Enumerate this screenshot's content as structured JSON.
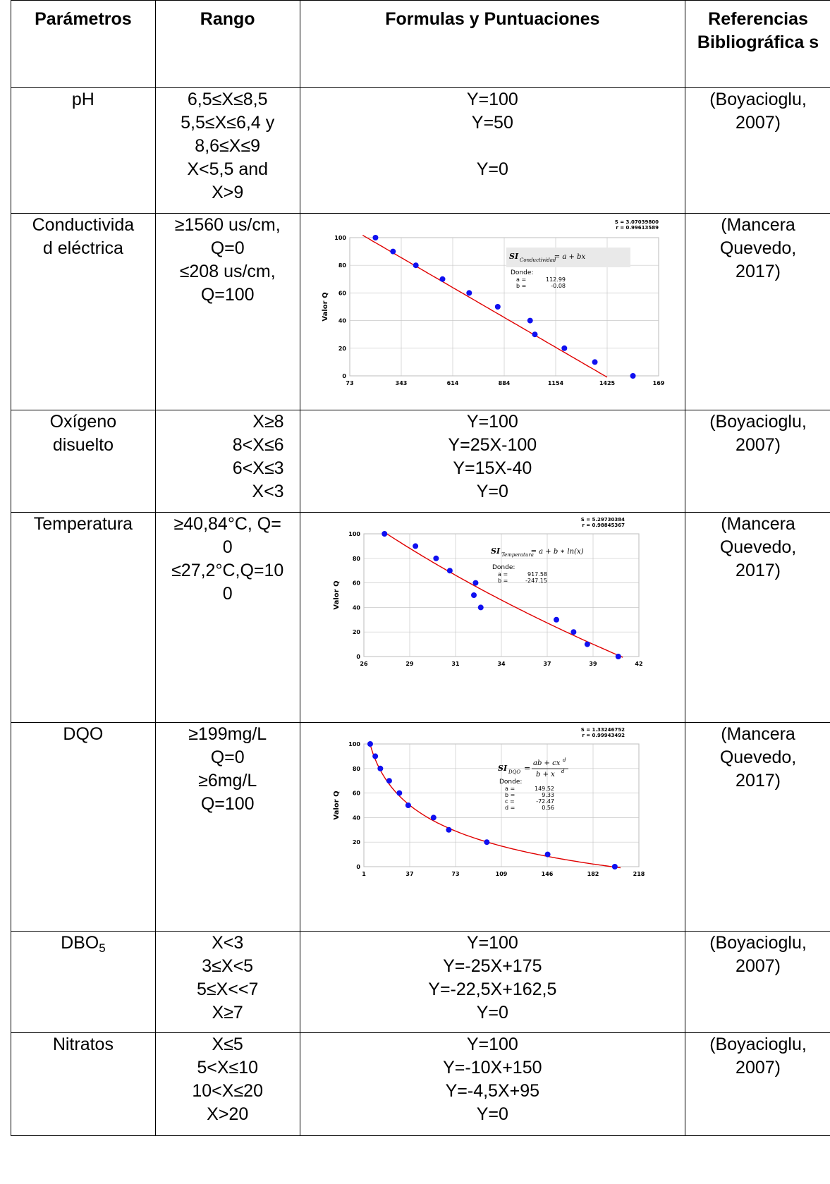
{
  "headers": {
    "parametros": "Parámetros",
    "rango": "Rango",
    "formulas": "Formulas y Puntuaciones",
    "referencias": "Referencias Bibliográfica s"
  },
  "rows": {
    "ph": {
      "param": "pH",
      "rango": [
        "6,5≤X≤8,5",
        "5,5≤X≤6,4 y",
        "8,6≤X≤9",
        "X<5,5 and",
        "X>9"
      ],
      "formulas": [
        "Y=100",
        "Y=50",
        "Y=0"
      ],
      "ref": [
        "(Boyacioglu,",
        "2007)"
      ]
    },
    "conductividad": {
      "param": [
        "Conductivida",
        "d eléctrica"
      ],
      "rango": [
        "≥1560 us/cm,",
        "Q=0",
        "≤208 us/cm,",
        "Q=100"
      ],
      "ref": [
        "(Mancera",
        "Quevedo,",
        "2017)"
      ]
    },
    "oxigeno": {
      "param": [
        "Oxígeno",
        "disuelto"
      ],
      "rango": [
        "X≥8",
        "8<X≤6",
        "6<X≤3",
        "X<3"
      ],
      "formulas": [
        "Y=100",
        "Y=25X-100",
        "Y=15X-40",
        "Y=0"
      ],
      "ref": [
        "(Boyacioglu,",
        "2007)"
      ]
    },
    "temperatura": {
      "param": "Temperatura",
      "rango": [
        "≥40,84°C, Q=",
        "0",
        "≤27,2°C,Q=10",
        "0"
      ],
      "ref": [
        "(Mancera",
        "Quevedo,",
        "2017)"
      ]
    },
    "dqo": {
      "param": "DQO",
      "rango": [
        "≥199mg/L",
        "Q=0",
        "≥6mg/L",
        "Q=100"
      ],
      "ref": [
        "(Mancera",
        "Quevedo,",
        "2017)"
      ]
    },
    "dbo": {
      "param_base": "DBO",
      "param_sub": "5",
      "rango": [
        "X<3",
        "3≤X<5",
        "5≤X<<7",
        "X≥7"
      ],
      "formulas": [
        "Y=100",
        "Y=-25X+175",
        "Y=-22,5X+162,5",
        "Y=0"
      ],
      "ref": [
        "(Boyacioglu,",
        "2007)"
      ]
    },
    "nitratos": {
      "param": "Nitratos",
      "rango": [
        "X≤5",
        "5<X≤10",
        "10<X≤20",
        "X>20"
      ],
      "formulas": [
        "Y=100",
        "Y=-10X+150",
        "Y=-4,5X+95",
        "Y=0"
      ],
      "ref": [
        "(Boyacioglu,",
        "2007)"
      ]
    }
  },
  "colors": {
    "points": "#1010f0",
    "curve": "#e00000",
    "grid": "#c8c8c8"
  },
  "chart_data": [
    {
      "type": "scatter",
      "ylabel": "Valor Q",
      "stats": [
        "S = 3.07039800",
        "r = 0.99613589"
      ],
      "formula_label": "SI",
      "formula_sub": "Conductividad",
      "formula_rhs": "= a + bx",
      "donde": "Donde:",
      "coef_names": [
        "a =",
        "b ="
      ],
      "coef_values": [
        "112.99",
        "-0.08"
      ],
      "xticks": [
        "73",
        "343",
        "614",
        "884",
        "1154",
        "1425",
        "169"
      ],
      "xlim": [
        73,
        1695
      ],
      "yticks": [
        "0",
        "20",
        "40",
        "60",
        "80",
        "100"
      ],
      "ylim": [
        0,
        100
      ],
      "points": [
        [
          208,
          100
        ],
        [
          300,
          90
        ],
        [
          420,
          80
        ],
        [
          560,
          70
        ],
        [
          700,
          60
        ],
        [
          850,
          50
        ],
        [
          1020,
          40
        ],
        [
          1045,
          30
        ],
        [
          1200,
          20
        ],
        [
          1360,
          10
        ],
        [
          1560,
          0
        ]
      ],
      "fit": {
        "kind": "linear",
        "a": 112.99,
        "b": -0.08
      }
    },
    {
      "type": "scatter",
      "ylabel": "Valor Q",
      "stats": [
        "S = 5.29730384",
        "r = 0.98845367"
      ],
      "formula_label": "SI",
      "formula_sub": "Temperatura",
      "formula_rhs": "= a + b ∗ ln(x)",
      "donde": "Donde:",
      "coef_names": [
        "a =",
        "b ="
      ],
      "coef_values": [
        "917.58",
        "-247.15"
      ],
      "xticks": [
        "26",
        "29",
        "31",
        "34",
        "37",
        "39",
        "42"
      ],
      "xlim": [
        26,
        42
      ],
      "yticks": [
        "0",
        "20",
        "40",
        "60",
        "80",
        "100"
      ],
      "ylim": [
        0,
        100
      ],
      "points": [
        [
          27.2,
          100
        ],
        [
          29.0,
          90
        ],
        [
          30.2,
          80
        ],
        [
          31.0,
          70
        ],
        [
          32.5,
          60
        ],
        [
          32.4,
          50
        ],
        [
          32.8,
          40
        ],
        [
          37.2,
          30
        ],
        [
          38.2,
          20
        ],
        [
          39.0,
          10
        ],
        [
          40.8,
          0
        ]
      ],
      "fit": {
        "kind": "log",
        "a": 917.58,
        "b": -247.15
      }
    },
    {
      "type": "scatter",
      "ylabel": "Valor Q",
      "stats": [
        "S = 1.33246752",
        "r = 0.99943492"
      ],
      "formula_label": "SI",
      "formula_sub": "DQO",
      "formula_num": "ab + cx",
      "formula_den": "b + x",
      "formula_exp": "d",
      "donde": "Donde:",
      "coef_names": [
        "a =",
        "b =",
        "c =",
        "d ="
      ],
      "coef_values": [
        "149.52",
        "9.33",
        "-72.47",
        "0.56"
      ],
      "xticks": [
        "1",
        "37",
        "73",
        "109",
        "146",
        "182",
        "218"
      ],
      "xlim": [
        1,
        218
      ],
      "yticks": [
        "0",
        "20",
        "40",
        "60",
        "80",
        "100"
      ],
      "ylim": [
        0,
        100
      ],
      "points": [
        [
          6,
          100
        ],
        [
          10,
          90
        ],
        [
          14,
          80
        ],
        [
          21,
          70
        ],
        [
          29,
          60
        ],
        [
          36,
          50
        ],
        [
          56,
          40
        ],
        [
          68,
          30
        ],
        [
          98,
          20
        ],
        [
          146,
          10
        ],
        [
          199,
          0
        ]
      ],
      "fit": {
        "kind": "mmf",
        "a": 149.52,
        "b": 9.33,
        "c": -72.47,
        "d": 0.56
      }
    }
  ]
}
